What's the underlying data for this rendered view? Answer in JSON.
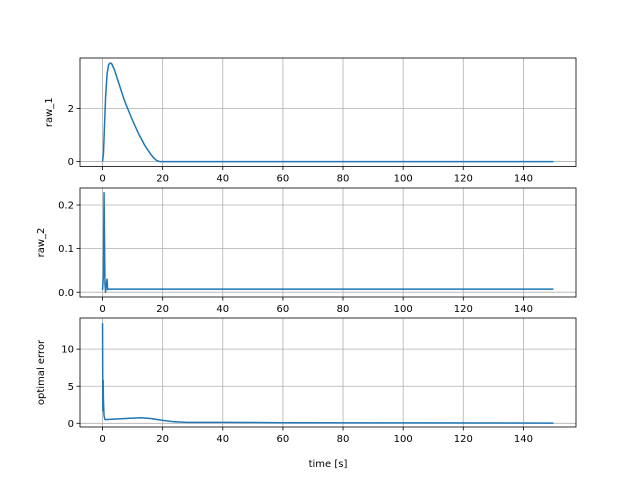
{
  "chart_data": [
    {
      "type": "line",
      "ylabel": "raw_1",
      "xlim": [
        -7.5,
        157.5
      ],
      "ylim": [
        -0.186,
        3.91
      ],
      "xticks": [
        0,
        20,
        40,
        60,
        80,
        100,
        120,
        140
      ],
      "yticks": [
        0,
        2
      ],
      "grid": true,
      "color": "#1f77b4",
      "x": [
        0,
        0.3,
        0.6,
        1,
        1.5,
        2,
        2.5,
        3,
        4,
        5,
        6,
        7,
        8,
        10,
        12,
        14,
        16,
        17,
        18,
        19,
        20,
        40,
        60,
        80,
        100,
        120,
        150
      ],
      "y": [
        0,
        0.3,
        1.2,
        2.4,
        3.3,
        3.65,
        3.72,
        3.7,
        3.45,
        3.1,
        2.75,
        2.4,
        2.1,
        1.55,
        1.05,
        0.62,
        0.28,
        0.14,
        0.04,
        0.0,
        0.0,
        0.0,
        0.0,
        0.0,
        0.0,
        0.0,
        0.0
      ]
    },
    {
      "type": "line",
      "ylabel": "raw_2",
      "xlim": [
        -7.5,
        157.5
      ],
      "ylim": [
        -0.011,
        0.239
      ],
      "xticks": [
        0,
        20,
        40,
        60,
        80,
        100,
        120,
        140
      ],
      "yticks": [
        0.0,
        0.1,
        0.2
      ],
      "ytick_labels": [
        "0.0",
        "0.1",
        "0.2"
      ],
      "grid": true,
      "color": "#1f77b4",
      "x": [
        0,
        0.3,
        0.5,
        0.8,
        1.0,
        1.3,
        1.5,
        1.7,
        2,
        20,
        150
      ],
      "y": [
        0.005,
        0.04,
        0.228,
        0.02,
        0.0,
        0.02,
        0.03,
        0.006,
        0.007,
        0.007,
        0.007
      ]
    },
    {
      "type": "line",
      "ylabel": "optimal error",
      "xlabel": "time [s]",
      "xlim": [
        -7.5,
        157.5
      ],
      "ylim": [
        -0.5,
        14.2
      ],
      "xticks": [
        0,
        20,
        40,
        60,
        80,
        100,
        120,
        140
      ],
      "yticks": [
        0,
        5,
        10
      ],
      "grid": true,
      "color": "#1f77b4",
      "x": [
        0,
        0.1,
        0.2,
        0.3,
        0.5,
        0.8,
        1,
        3,
        6,
        10,
        13,
        16,
        20,
        24,
        28,
        40,
        60,
        100,
        150
      ],
      "y": [
        13.5,
        1.7,
        5.8,
        3.0,
        1.0,
        0.5,
        0.5,
        0.55,
        0.62,
        0.7,
        0.75,
        0.65,
        0.4,
        0.2,
        0.12,
        0.12,
        0.08,
        0.05,
        0.03
      ]
    }
  ]
}
